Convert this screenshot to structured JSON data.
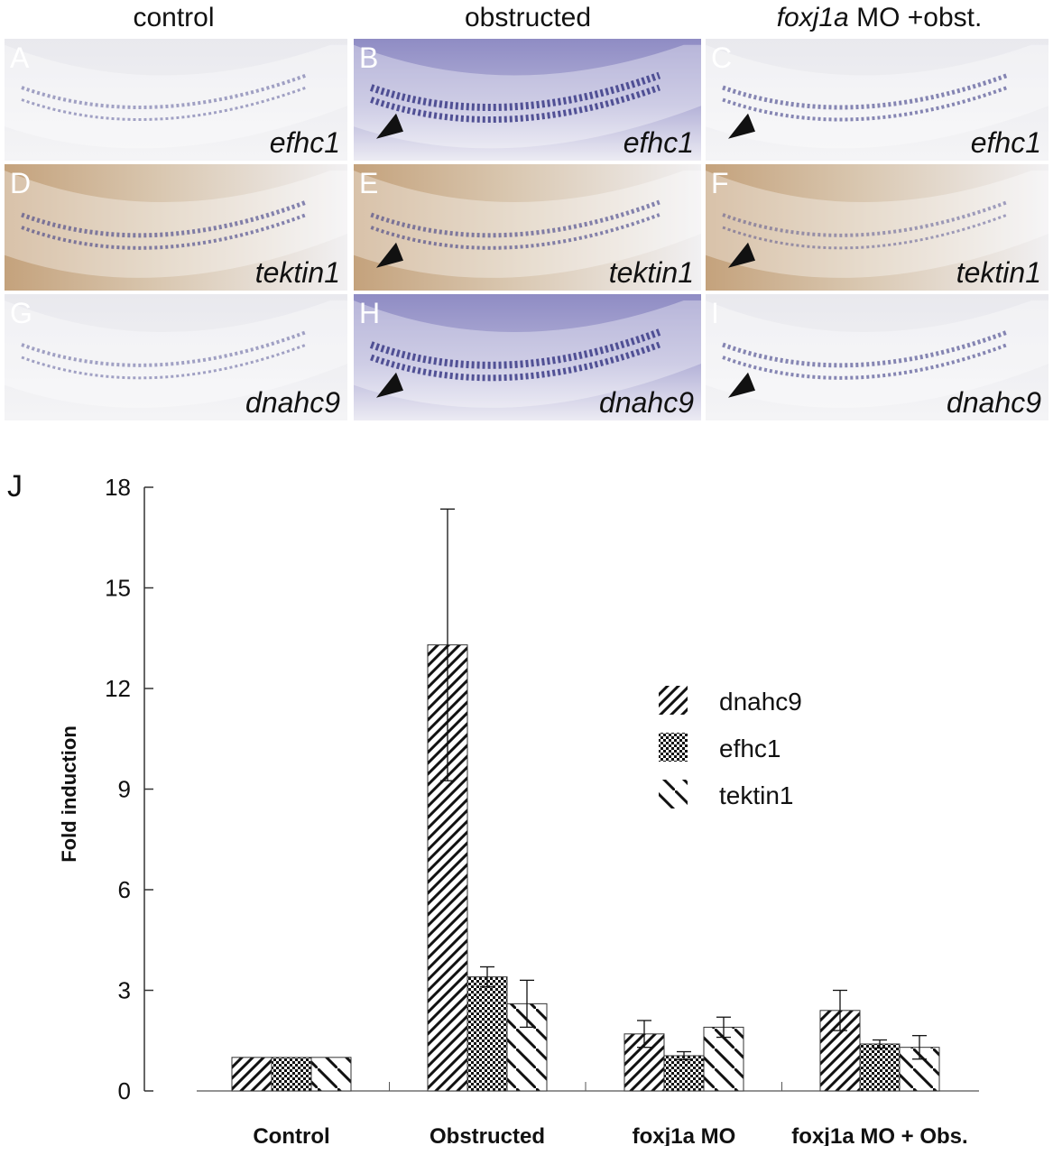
{
  "figure": {
    "column_headers": [
      {
        "id": "control",
        "prefix": "",
        "italic": "",
        "text": "control"
      },
      {
        "id": "obstructed",
        "prefix": "",
        "italic": "",
        "text": "obstructed"
      },
      {
        "id": "foxj1a",
        "prefix": "",
        "italic": "foxj1a",
        "text": " MO +obst."
      }
    ],
    "panels": [
      {
        "letter": "A",
        "gene": "efhc1",
        "arrow": false,
        "tone": "light",
        "stain": "light"
      },
      {
        "letter": "B",
        "gene": "efhc1",
        "arrow": true,
        "tone": "purple",
        "stain": "strong"
      },
      {
        "letter": "C",
        "gene": "efhc1",
        "arrow": true,
        "tone": "light",
        "stain": "medium"
      },
      {
        "letter": "D",
        "gene": "tektin1",
        "arrow": false,
        "tone": "brown",
        "stain": "medium"
      },
      {
        "letter": "E",
        "gene": "tektin1",
        "arrow": true,
        "tone": "brown",
        "stain": "medium"
      },
      {
        "letter": "F",
        "gene": "tektin1",
        "arrow": true,
        "tone": "brown",
        "stain": "light"
      },
      {
        "letter": "G",
        "gene": "dnahc9",
        "arrow": false,
        "tone": "light",
        "stain": "light"
      },
      {
        "letter": "H",
        "gene": "dnahc9",
        "arrow": true,
        "tone": "purple",
        "stain": "strong"
      },
      {
        "letter": "I",
        "gene": "dnahc9",
        "arrow": true,
        "tone": "light",
        "stain": "medium"
      }
    ],
    "colors": {
      "light_bg": "#e9e9ee",
      "purple_bg": "#8f8cc4",
      "brown_bg": "#c4a27c",
      "stain": "#3a3a86",
      "arrow": "#111111",
      "letter": "#ffffff"
    }
  },
  "chart_data": {
    "type": "bar",
    "panel_label": "J",
    "title": "",
    "xlabel": "",
    "ylabel": "Fold induction",
    "ylim": [
      0,
      18
    ],
    "yticks": [
      0,
      3,
      6,
      9,
      12,
      15,
      18
    ],
    "categories": [
      "Control",
      "Obstructed",
      "foxj1a MO",
      "foxj1a MO + Obs."
    ],
    "series": [
      {
        "name": "dnahc9",
        "pattern": "diag-dense",
        "values": [
          1.0,
          13.3,
          1.7,
          2.4
        ],
        "errors": [
          0,
          4.05,
          0.4,
          0.6
        ]
      },
      {
        "name": "efhc1",
        "pattern": "checker",
        "values": [
          1.0,
          3.4,
          1.05,
          1.4
        ],
        "errors": [
          0,
          0.3,
          0.12,
          0.12
        ]
      },
      {
        "name": "tektin1",
        "pattern": "diag-sparse",
        "values": [
          1.0,
          2.6,
          1.9,
          1.3
        ],
        "errors": [
          0,
          0.7,
          0.3,
          0.35
        ]
      }
    ],
    "legend_position": "right"
  }
}
